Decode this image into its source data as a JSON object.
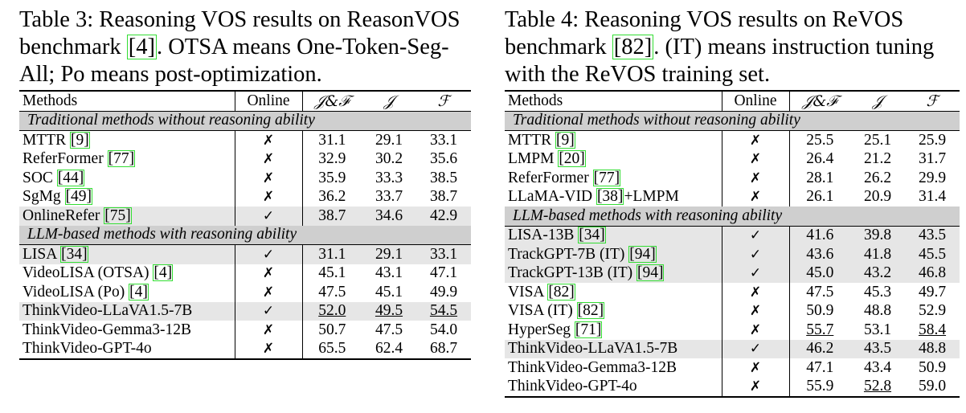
{
  "tables": [
    {
      "caption_lines": [
        [
          "Table 3: Reasoning VOS results on ReasonVOS"
        ],
        [
          "benchmark ",
          {
            "ref": "4"
          },
          ". OTSA means One-Token-Seg-"
        ],
        [
          "All; Po means post-optimization."
        ]
      ],
      "headers": [
        "Methods",
        "Online",
        "𝒥&ℱ",
        "𝒥",
        "ℱ"
      ],
      "groups": [
        {
          "title": "Traditional methods without reasoning ability",
          "rows": [
            {
              "name": "MTTR ",
              "ref": "9",
              "online": "✗",
              "jf": "31.1",
              "j": "29.1",
              "f": "33.1"
            },
            {
              "name": "ReferFormer ",
              "ref": "77",
              "online": "✗",
              "jf": "32.9",
              "j": "30.2",
              "f": "35.6"
            },
            {
              "name": "SOC ",
              "ref": "44",
              "online": "✗",
              "jf": "35.9",
              "j": "33.3",
              "f": "38.5"
            },
            {
              "name": "SgMg ",
              "ref": "49",
              "online": "✗",
              "jf": "36.2",
              "j": "33.7",
              "f": "38.7"
            },
            {
              "name": "OnlineRefer ",
              "ref": "75",
              "online": "✓",
              "jf": "38.7",
              "j": "34.6",
              "f": "42.9",
              "shade": true
            }
          ]
        },
        {
          "title": "LLM-based methods with reasoning ability",
          "rows": [
            {
              "name": "LISA ",
              "ref": "34",
              "online": "✓",
              "jf": "31.1",
              "j": "29.1",
              "f": "33.1",
              "shade": true
            },
            {
              "name": "VideoLISA (OTSA) ",
              "ref": "4",
              "online": "✗",
              "jf": "45.1",
              "j": "43.1",
              "f": "47.1"
            },
            {
              "name": "VideoLISA (Po) ",
              "ref": "4",
              "online": "✗",
              "jf": "47.5",
              "j": "45.1",
              "f": "49.9"
            },
            {
              "name": "ThinkVideo-LLaVA1.5-7B",
              "online": "✓",
              "jf": "52.0",
              "j": "49.5",
              "f": "54.5",
              "shade": true,
              "style": {
                "jf": "u",
                "j": "u",
                "f": "u"
              }
            },
            {
              "name": "ThinkVideo-Gemma3-12B",
              "online": "✗",
              "jf": "50.7",
              "j": "47.5",
              "f": "54.0"
            },
            {
              "name": "ThinkVideo-GPT-4o",
              "online": "✗",
              "jf": "65.5",
              "j": "62.4",
              "f": "68.7",
              "style": {
                "jf": "b",
                "j": "b",
                "f": "b"
              }
            }
          ]
        }
      ]
    },
    {
      "caption_lines": [
        [
          "Table 4:  Reasoning VOS results on ReVOS"
        ],
        [
          "benchmark ",
          {
            "ref": "82"
          },
          ". (IT) means instruction tuning"
        ],
        [
          "with the ReVOS training set."
        ]
      ],
      "headers": [
        "Methods",
        "Online",
        "𝒥&ℱ",
        "𝒥",
        "ℱ"
      ],
      "groups": [
        {
          "title": "Traditional methods without reasoning ability",
          "rows": [
            {
              "name": "MTTR ",
              "ref": "9",
              "online": "✗",
              "jf": "25.5",
              "j": "25.1",
              "f": "25.9"
            },
            {
              "name": "LMPM ",
              "ref": "20",
              "online": "✗",
              "jf": "26.4",
              "j": "21.2",
              "f": "31.7"
            },
            {
              "name": "ReferFormer ",
              "ref": "77",
              "online": "✗",
              "jf": "28.1",
              "j": "26.2",
              "f": "29.9"
            },
            {
              "name": "LLaMA-VID ",
              "ref": "38",
              "suffix": "+LMPM",
              "online": "✗",
              "jf": "26.1",
              "j": "20.9",
              "f": "31.4"
            }
          ]
        },
        {
          "title": "LLM-based methods with reasoning ability",
          "rows": [
            {
              "name": "LISA-13B ",
              "ref": "34",
              "online": "✓",
              "jf": "41.6",
              "j": "39.8",
              "f": "43.5",
              "shade": true
            },
            {
              "name": "TrackGPT-7B (IT) ",
              "ref": "94",
              "online": "✓",
              "jf": "43.6",
              "j": "41.8",
              "f": "45.5",
              "shade": true
            },
            {
              "name": "TrackGPT-13B (IT) ",
              "ref": "94",
              "online": "✓",
              "jf": "45.0",
              "j": "43.2",
              "f": "46.8",
              "shade": true
            },
            {
              "name": "VISA ",
              "ref": "82",
              "online": "✗",
              "jf": "47.5",
              "j": "45.3",
              "f": "49.7"
            },
            {
              "name": "VISA (IT) ",
              "ref": "82",
              "online": "✗",
              "jf": "50.9",
              "j": "48.8",
              "f": "52.9"
            },
            {
              "name": "HyperSeg ",
              "ref": "71",
              "online": "✗",
              "jf": "55.7",
              "j": "53.1",
              "f": "58.4",
              "style": {
                "jf": "u",
                "j": "b",
                "f": "u"
              }
            },
            {
              "name": "ThinkVideo-LLaVA1.5-7B",
              "online": "✓",
              "jf": "46.2",
              "j": "43.5",
              "f": "48.8",
              "shade": true
            },
            {
              "name": "ThinkVideo-Gemma3-12B",
              "online": "✗",
              "jf": "47.1",
              "j": "43.4",
              "f": "50.9"
            },
            {
              "name": "ThinkVideo-GPT-4o",
              "online": "✗",
              "jf": "55.9",
              "j": "52.8",
              "f": "59.0",
              "style": {
                "jf": "b",
                "j": "u",
                "f": "b"
              }
            }
          ]
        }
      ]
    }
  ]
}
